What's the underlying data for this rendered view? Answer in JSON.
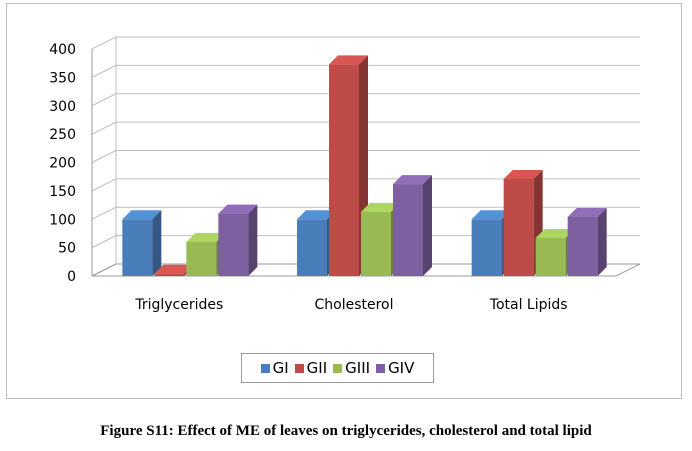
{
  "chart_data": {
    "type": "bar",
    "categories": [
      "Triglycerides",
      "Cholesterol",
      "Total Lipids"
    ],
    "series": [
      {
        "name": "GI",
        "color": "#4a7ebb",
        "values": [
          100,
          100,
          100
        ]
      },
      {
        "name": "GII",
        "color": "#be4b48",
        "values": [
          4,
          373,
          171
        ]
      },
      {
        "name": "GIII",
        "color": "#98b954",
        "values": [
          60,
          113,
          67
        ]
      },
      {
        "name": "GIV",
        "color": "#7d60a0",
        "values": [
          110,
          162,
          104
        ]
      }
    ],
    "ylim": [
      0,
      400
    ],
    "yticks": [
      0,
      50,
      100,
      150,
      200,
      250,
      300,
      350,
      400
    ],
    "grid": true,
    "legend_position": "bottom",
    "title": "",
    "xlabel": "",
    "ylabel": ""
  },
  "caption": "Figure S11: Effect of ME of leaves on triglycerides, cholesterol and total lipid"
}
